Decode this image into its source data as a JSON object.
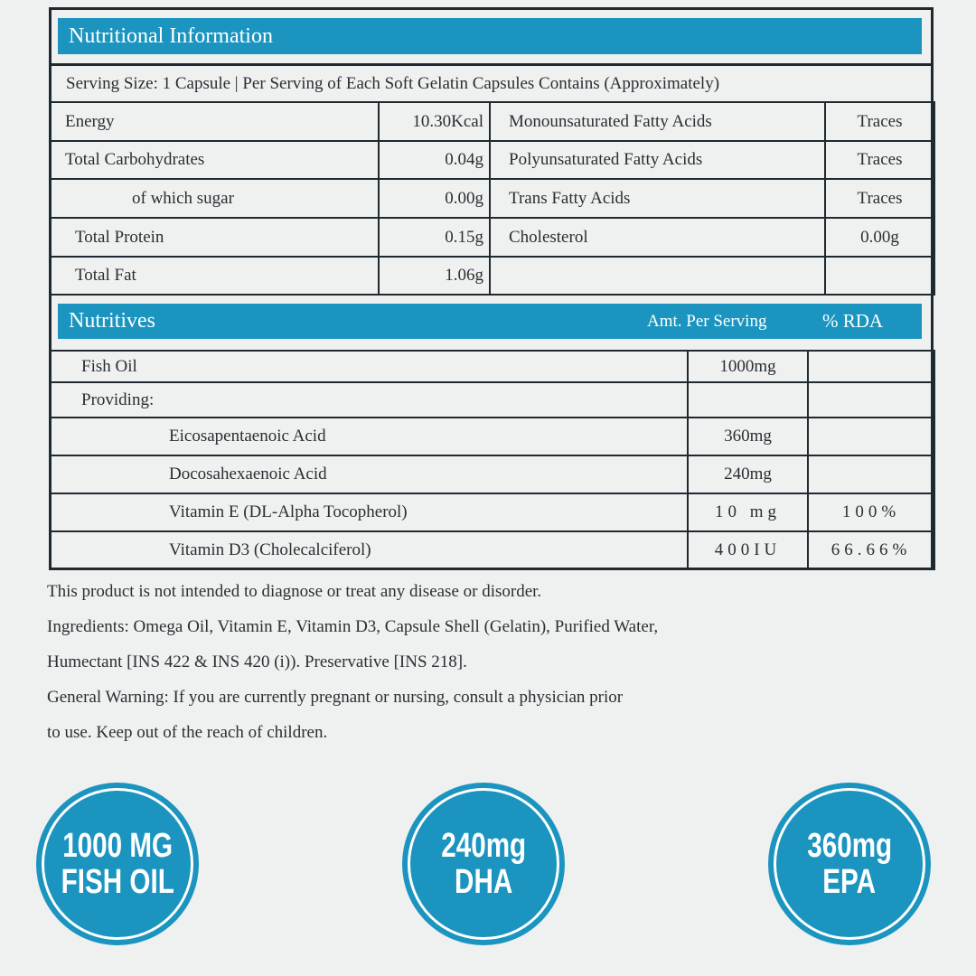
{
  "header": {
    "title": "Nutritional Information"
  },
  "serving": "Serving Size: 1 Capsule | Per Serving of Each Soft Gelatin Capsules Contains (Approximately)",
  "nutrition_table": {
    "rows": [
      [
        "Energy",
        "10.30Kcal",
        "Monounsaturated Fatty Acids",
        "Traces"
      ],
      [
        "Total Carbohydrates",
        "0.04g",
        "Polyunsaturated Fatty Acids",
        "Traces"
      ],
      [
        "of which sugar",
        "0.00g",
        "Trans Fatty Acids",
        "Traces"
      ],
      [
        "Total Protein",
        "0.15g",
        "Cholesterol",
        "0.00g"
      ],
      [
        "Total Fat",
        "1.06g"
      ]
    ]
  },
  "nutritives_table": {
    "title": "Nutritives",
    "columns": [
      "Amt. Per Serving",
      "% RDA"
    ],
    "rows": [
      [
        "Fish Oil",
        "1000mg"
      ],
      [
        "Providing:"
      ],
      [
        "Eicosapentaenoic Acid",
        "360mg"
      ],
      [
        "Docosahexaenoic Acid",
        "240mg"
      ],
      [
        "Vitamin E (DL-Alpha Tocopherol)",
        "10 mg",
        "100%"
      ],
      [
        "Vitamin D3 (Cholecalciferol)",
        "400IU",
        "66.66%"
      ]
    ]
  },
  "notes": [
    "This product is not intended to diagnose or treat any disease or disorder.",
    "Ingredients: Omega Oil, Vitamin E, Vitamin D3, Capsule Shell (Gelatin), Purified Water,",
    "Humectant [INS 422 & INS 420 (i)). Preservative [INS 218].",
    "General Warning: If you are currently pregnant or nursing, consult a physician prior",
    "to use. Keep out of the reach of children."
  ],
  "badges": [
    {
      "lines": [
        "1000 MG",
        "FISH OIL"
      ]
    },
    {
      "lines": [
        "240mg",
        "DHA"
      ]
    },
    {
      "lines": [
        "360mg",
        "EPA"
      ]
    }
  ]
}
